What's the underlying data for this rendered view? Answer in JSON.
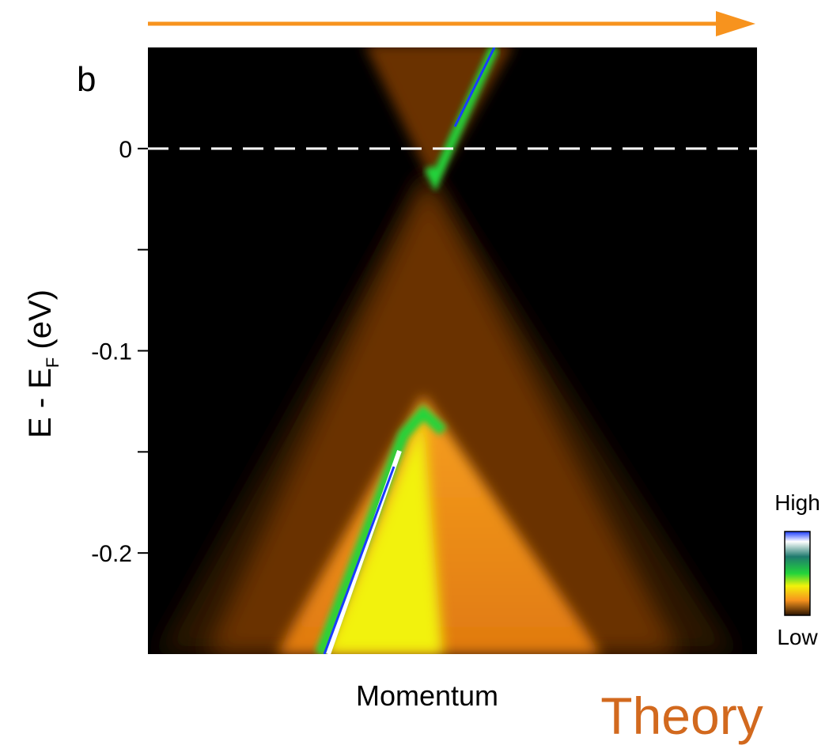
{
  "chart_data": {
    "type": "heatmap",
    "panel_label": "b",
    "ylabel": "E - E",
    "ylabel_sub": "F",
    "ylabel_unit": "(eV)",
    "xlabel": "Momentum",
    "annotation": "Theory",
    "colorbar_high": "High",
    "colorbar_low": "Low",
    "ylim": [
      -0.25,
      0.05
    ],
    "yticks": [
      0,
      -0.1,
      -0.2
    ],
    "yminor_ticks": [
      -0.05,
      -0.15
    ],
    "reference_line": 0,
    "arrow_color": "#f7931e",
    "annotation_color": "#d2691e"
  }
}
